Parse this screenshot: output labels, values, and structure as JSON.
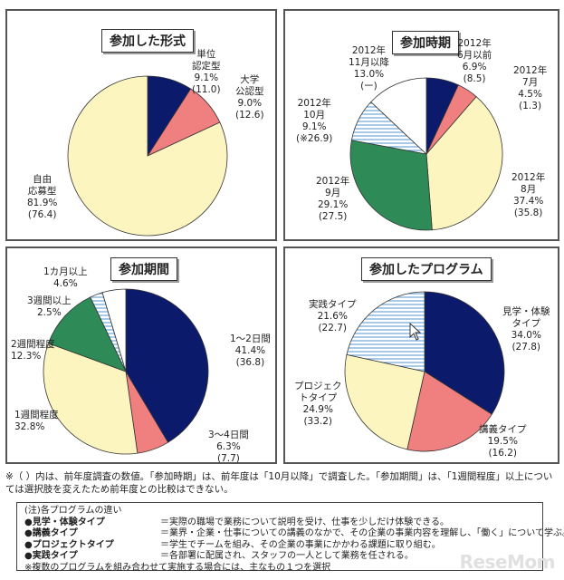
{
  "charts": [
    {
      "type": "pie",
      "title": "参加した形式",
      "start_deg": 0,
      "slices": [
        {
          "lines": [
            "単位",
            "認定型",
            "9.1%",
            "(11.0)"
          ],
          "value": 9.1,
          "color": "#0c1a6b",
          "hatch": false
        },
        {
          "lines": [
            "大学",
            "公認型",
            "9.0%",
            "(12.6)"
          ],
          "value": 9.0,
          "color": "#f08080",
          "hatch": false
        },
        {
          "lines": [
            "自由",
            "応募型",
            "81.9%",
            "(76.4)"
          ],
          "value": 81.9,
          "color": "#fdf5c0",
          "hatch": false
        }
      ]
    },
    {
      "type": "pie",
      "title": "参加時期",
      "start_deg": 0,
      "slices": [
        {
          "lines": [
            "2012年",
            "6月以前",
            "6.9%",
            "(8.5)"
          ],
          "value": 6.9,
          "color": "#0c1a6b",
          "hatch": false
        },
        {
          "lines": [
            "2012年",
            "7月",
            "4.5%",
            "(1.3)"
          ],
          "value": 4.5,
          "color": "#f08080",
          "hatch": false
        },
        {
          "lines": [
            "2012年",
            "8月",
            "37.4%",
            "(35.8)"
          ],
          "value": 37.4,
          "color": "#fdf5c0",
          "hatch": false
        },
        {
          "lines": [
            "2012年",
            "9月",
            "29.1%",
            "(27.5)"
          ],
          "value": 29.1,
          "color": "#2e8b57",
          "hatch": false
        },
        {
          "lines": [
            "2012年",
            "10月",
            "9.1%",
            "(※26.9)"
          ],
          "value": 9.1,
          "color": "#ffffff",
          "hatch": true
        },
        {
          "lines": [
            "2012年",
            "11月以降",
            "13.0%",
            "(ー)"
          ],
          "value": 13.0,
          "color": "#ffffff",
          "hatch": false
        }
      ]
    },
    {
      "type": "pie",
      "title": "参加期間",
      "start_deg": 0,
      "slices": [
        {
          "lines": [
            "1～2日間",
            "41.4%",
            "(36.8)"
          ],
          "value": 41.4,
          "color": "#0c1a6b",
          "hatch": false
        },
        {
          "lines": [
            "3～4日間",
            "6.3%",
            "(7.7)"
          ],
          "value": 6.3,
          "color": "#f08080",
          "hatch": false
        },
        {
          "lines": [
            "1週間程度",
            "32.8%"
          ],
          "value": 32.8,
          "color": "#fdf5c0",
          "hatch": false
        },
        {
          "lines": [
            "2週間程度",
            "12.3%"
          ],
          "value": 12.3,
          "color": "#2e8b57",
          "hatch": false
        },
        {
          "lines": [
            "3週間以上",
            "2.5%"
          ],
          "value": 2.5,
          "color": "#ffffff",
          "hatch": true
        },
        {
          "lines": [
            "1カ月以上",
            "4.6%"
          ],
          "value": 4.6,
          "color": "#ffffff",
          "hatch": false
        }
      ]
    },
    {
      "type": "pie",
      "title": "参加したプログラム",
      "start_deg": 0,
      "slices": [
        {
          "lines": [
            "見学・体験",
            "タイプ",
            "34.0%",
            "(27.8)"
          ],
          "value": 34.0,
          "color": "#0c1a6b",
          "hatch": false
        },
        {
          "lines": [
            "講義タイプ",
            "19.5%",
            "(16.2)"
          ],
          "value": 19.5,
          "color": "#f08080",
          "hatch": false
        },
        {
          "lines": [
            "プロジェク",
            "トタイプ",
            "24.9%",
            "(33.2)"
          ],
          "value": 24.9,
          "color": "#fdf5c0",
          "hatch": false
        },
        {
          "lines": [
            "実践タイプ",
            "21.6%",
            "(22.7)"
          ],
          "value": 21.6,
          "color": "#ffffff",
          "hatch": true
        }
      ]
    }
  ],
  "footnote": "※（ ）内は、前年度調査の数値。「参加時期」は、前年度は「10月以降」で調査した。「参加期間」は、「1週間程度」以上については選択肢を変えたため前年度との比較はできない。",
  "legend": {
    "title": "(注)各プログラムの違い",
    "rows": [
      {
        "key": "●見学・体験タイプ",
        "desc": "＝実際の職場で業務について説明を受け、仕事を少しだけ体験できる。"
      },
      {
        "key": "●講義タイプ",
        "desc": "＝業界・企業・仕事についての講義のなかで、その企業の事業内容を理解し、「働く」について学ぶ。"
      },
      {
        "key": "●プロジェクトタイプ",
        "desc": "＝学生でチームを組み、その企業の事業にかかわる課題に取り組む。"
      },
      {
        "key": "●実践タイプ",
        "desc": "＝各部署に配属され、スタッフの一人として業務を任される。"
      }
    ],
    "footer": "※複数のプログラムを組み合わせて実施する場合には、主なもの１つを選択"
  },
  "logo": "ReseMom"
}
